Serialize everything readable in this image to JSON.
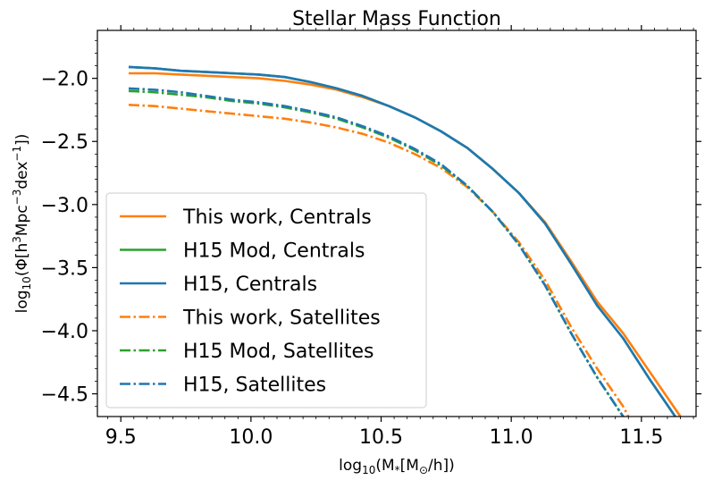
{
  "chart_data": {
    "type": "line",
    "title": "Stellar Mass Function",
    "xlabel": {
      "pre": "log",
      "sub": "10",
      "mid": "(M",
      "sub2": "*",
      "post": "[M",
      "sub3": "⊙",
      "end": "/h])"
    },
    "ylabel": {
      "pre": "log",
      "sub": "10",
      "mid": "(Φ[h",
      "sup": "3",
      "mid2": "Mpc",
      "sup2": "−3",
      "mid3": "dex",
      "sup3": "−1",
      "end": "])"
    },
    "xlim": [
      9.41,
      11.71
    ],
    "ylim": [
      -4.68,
      -1.62
    ],
    "xticks": [
      9.5,
      10.0,
      10.5,
      11.0,
      11.5
    ],
    "xtick_labels": [
      "9.5",
      "10.0",
      "10.5",
      "11.0",
      "11.5"
    ],
    "yticks": [
      -2.0,
      -2.5,
      -3.0,
      -3.5,
      -4.0,
      -4.5
    ],
    "ytick_labels": [
      "−2.0",
      "−2.5",
      "−3.0",
      "−3.5",
      "−4.0",
      "−4.5"
    ],
    "legend_position": "lower-left",
    "series": [
      {
        "name": "This work, Centrals",
        "color": "#ff7f0e",
        "style": "solid",
        "x": [
          9.53,
          9.63,
          9.73,
          9.83,
          9.93,
          10.03,
          10.13,
          10.23,
          10.33,
          10.43,
          10.53,
          10.63,
          10.73,
          10.83,
          10.93,
          11.03,
          11.13,
          11.23,
          11.33,
          11.43,
          11.53,
          11.63,
          11.65
        ],
        "y": [
          -1.96,
          -1.96,
          -1.97,
          -1.98,
          -1.99,
          -2.0,
          -2.02,
          -2.05,
          -2.09,
          -2.15,
          -2.22,
          -2.31,
          -2.42,
          -2.55,
          -2.72,
          -2.91,
          -3.14,
          -3.45,
          -3.77,
          -4.02,
          -4.32,
          -4.62,
          -4.68
        ]
      },
      {
        "name": "H15 Mod, Centrals",
        "color": "#2ca02c",
        "style": "solid",
        "x": [
          9.53,
          9.63,
          9.73,
          9.83,
          9.93,
          10.03,
          10.13,
          10.23,
          10.33,
          10.43,
          10.53,
          10.63,
          10.73,
          10.83,
          10.93,
          11.03,
          11.13,
          11.23,
          11.33,
          11.43,
          11.53,
          11.63
        ],
        "y": [
          -1.91,
          -1.92,
          -1.94,
          -1.95,
          -1.96,
          -1.97,
          -1.99,
          -2.03,
          -2.08,
          -2.14,
          -2.22,
          -2.31,
          -2.42,
          -2.55,
          -2.72,
          -2.91,
          -3.15,
          -3.47,
          -3.8,
          -4.06,
          -4.38,
          -4.68
        ]
      },
      {
        "name": "H15, Centrals",
        "color": "#1f77b4",
        "style": "solid",
        "x": [
          9.53,
          9.63,
          9.73,
          9.83,
          9.93,
          10.03,
          10.13,
          10.23,
          10.33,
          10.43,
          10.53,
          10.63,
          10.73,
          10.83,
          10.93,
          11.03,
          11.13,
          11.23,
          11.33,
          11.43,
          11.53,
          11.63
        ],
        "y": [
          -1.91,
          -1.92,
          -1.94,
          -1.95,
          -1.96,
          -1.97,
          -1.99,
          -2.03,
          -2.08,
          -2.14,
          -2.22,
          -2.31,
          -2.42,
          -2.55,
          -2.72,
          -2.91,
          -3.15,
          -3.47,
          -3.8,
          -4.06,
          -4.38,
          -4.68
        ]
      },
      {
        "name": "This work, Satellites",
        "color": "#ff7f0e",
        "style": "dashdot",
        "x": [
          9.53,
          9.63,
          9.73,
          9.83,
          9.93,
          10.03,
          10.13,
          10.23,
          10.33,
          10.43,
          10.53,
          10.63,
          10.73,
          10.83,
          10.93,
          11.03,
          11.13,
          11.23,
          11.33,
          11.43,
          11.45
        ],
        "y": [
          -2.21,
          -2.22,
          -2.24,
          -2.26,
          -2.28,
          -2.3,
          -2.32,
          -2.35,
          -2.39,
          -2.44,
          -2.51,
          -2.6,
          -2.71,
          -2.86,
          -3.06,
          -3.3,
          -3.6,
          -3.97,
          -4.3,
          -4.6,
          -4.68
        ]
      },
      {
        "name": "H15 Mod, Satellites",
        "color": "#2ca02c",
        "style": "dashdot",
        "x": [
          9.53,
          9.63,
          9.73,
          9.83,
          9.93,
          10.03,
          10.13,
          10.23,
          10.33,
          10.43,
          10.53,
          10.63,
          10.73,
          10.83,
          10.93,
          11.03,
          11.13,
          11.23,
          11.33,
          11.43
        ],
        "y": [
          -2.1,
          -2.11,
          -2.13,
          -2.15,
          -2.18,
          -2.2,
          -2.23,
          -2.27,
          -2.32,
          -2.39,
          -2.47,
          -2.57,
          -2.69,
          -2.85,
          -3.06,
          -3.32,
          -3.64,
          -4.02,
          -4.37,
          -4.68
        ]
      },
      {
        "name": "H15, Satellites",
        "color": "#1f77b4",
        "style": "dashdot",
        "x": [
          9.53,
          9.63,
          9.73,
          9.83,
          9.93,
          10.03,
          10.13,
          10.23,
          10.33,
          10.43,
          10.53,
          10.63,
          10.73,
          10.83,
          10.93,
          11.03,
          11.13,
          11.23,
          11.33,
          11.43
        ],
        "y": [
          -2.08,
          -2.09,
          -2.11,
          -2.14,
          -2.17,
          -2.19,
          -2.22,
          -2.26,
          -2.31,
          -2.38,
          -2.46,
          -2.56,
          -2.68,
          -2.85,
          -3.06,
          -3.32,
          -3.64,
          -4.02,
          -4.37,
          -4.68
        ]
      }
    ]
  }
}
